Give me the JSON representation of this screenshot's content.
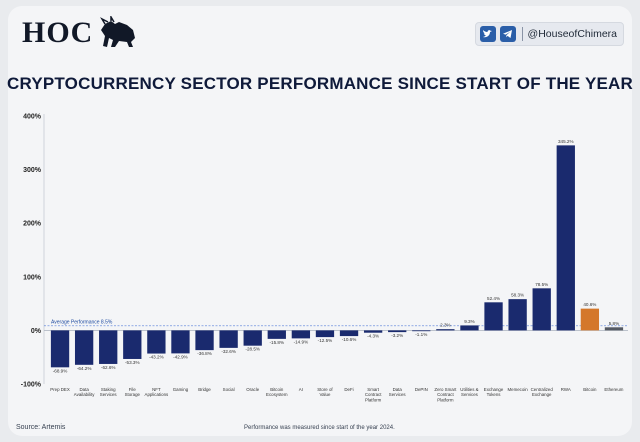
{
  "header": {
    "logo_text": "HOC",
    "handle": "@HouseofChimera",
    "title": "CRYPTOCURRENCY SECTOR PERFORMANCE SINCE START OF THE YEAR"
  },
  "footer": {
    "source": "Source: Artemis",
    "note": "Performance was measured since start of the year 2024."
  },
  "colors": {
    "bar": "#1a2a6e",
    "highlight": "#d4772a",
    "gray": "#555a63",
    "average": "#2d5fd0"
  },
  "chart_data": {
    "type": "bar",
    "title": "CRYPTOCURRENCY SECTOR PERFORMANCE SINCE START OF THE YEAR",
    "xlabel": "",
    "ylabel": "",
    "ylim": [
      -100,
      400
    ],
    "yticks": [
      400,
      300,
      200,
      100,
      0,
      -100
    ],
    "ytick_labels": [
      "400%",
      "300%",
      "200%",
      "100%",
      "0%",
      "-100%"
    ],
    "average": {
      "value": 8.5,
      "label": "Average Performance 8.5%"
    },
    "categories": [
      "Prep DEX",
      "Data Availability",
      "Staking Services",
      "File Storage",
      "NFT Applications",
      "Gaming",
      "Bridge",
      "Social",
      "Oracle",
      "Bitcoin Ecosystem",
      "AI",
      "Store of Value",
      "DeFi",
      "Smart Contract Platform",
      "Data Services",
      "DePIN",
      "Zero Smart Contract Platform",
      "Utilities & Services",
      "Exchange Tokens",
      "Memecoin",
      "Centralized Exchange",
      "RWA",
      "Bitcoin",
      "Ethereum"
    ],
    "values": [
      -68.9,
      -64.2,
      -62.6,
      -53.3,
      -43.2,
      -42.9,
      -36.8,
      -32.6,
      -28.5,
      -15.8,
      -14.9,
      -12.5,
      -10.6,
      -4.3,
      -3.2,
      -1.1,
      2.3,
      9.3,
      52.4,
      58.3,
      78.5,
      345.2,
      40.6,
      5.8
    ],
    "value_labels": [
      "-68.9%",
      "-64.2%",
      "-62.6%",
      "-53.3%",
      "-43.2%",
      "-42.9%",
      "-36.8%",
      "-32.6%",
      "-28.5%",
      "-15.8%",
      "-14.9%",
      "-12.5%",
      "-10.6%",
      "-4.3%",
      "-3.2%",
      "-1.1%",
      "2.3%",
      "9.3%",
      "52.4%",
      "58.3%",
      "78.5%",
      "345.2%",
      "40.6%",
      "5.8%"
    ],
    "highlight": [
      "Bitcoin"
    ],
    "muted": [
      "Ethereum"
    ]
  }
}
